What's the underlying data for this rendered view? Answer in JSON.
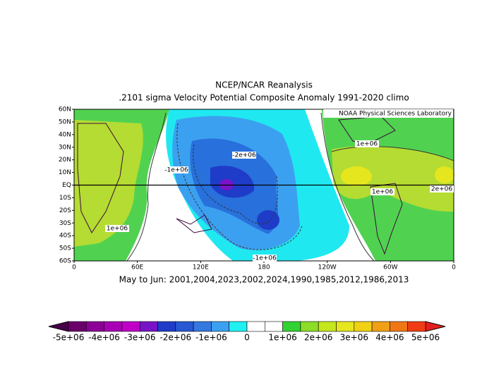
{
  "title": "NCEP/NCAR Reanalysis",
  "subtitle": ".2101 sigma Velocity Potential  Composite Anomaly 1991-2020 climo",
  "credit": "NOAA Physical Sciences Laboratory",
  "caption": "May to Jun: 2001,2004,2023,2002,2024,1990,1985,2012,1986,2013",
  "lat_labels": [
    "60N",
    "50N",
    "40N",
    "30N",
    "20N",
    "10N",
    "EQ",
    "10S",
    "20S",
    "30S",
    "40S",
    "50S",
    "60S"
  ],
  "lon_labels": [
    "0",
    "60E",
    "120E",
    "180",
    "120W",
    "60W",
    "0"
  ],
  "contour_labels": [
    "-2e+06",
    "-1e+06",
    "-1e+06",
    "1e+06",
    "1e+06",
    "2e+06",
    "1e+06"
  ],
  "colorbar": {
    "lim": [
      -5000000,
      5000000
    ],
    "ticks": [
      {
        "value": -5000000,
        "label": "-5e+06"
      },
      {
        "value": -4000000,
        "label": "-4e+06"
      },
      {
        "value": -3000000,
        "label": "-3e+06"
      },
      {
        "value": -2000000,
        "label": "-2e+06"
      },
      {
        "value": -1000000,
        "label": "-1e+06"
      },
      0,
      {
        "value": 1000000,
        "label": "1e+06"
      },
      {
        "value": 2000000,
        "label": "2e+06"
      },
      {
        "value": 3000000,
        "label": "3e+06"
      },
      {
        "value": 4000000,
        "label": "4e+06"
      },
      {
        "value": 5000000,
        "label": "5e+06"
      }
    ],
    "colors": [
      "#6a006a",
      "#8c0096",
      "#a800b4",
      "#c000c8",
      "#7814c8",
      "#1e3cc8",
      "#2858d2",
      "#3478e0",
      "#3ca0f0",
      "#20f0f0",
      "#ffffff",
      "#ffffff",
      "#32d232",
      "#8cdc28",
      "#c4e61e",
      "#e6e61e",
      "#f0d214",
      "#f0a014",
      "#f07814",
      "#f03c14"
    ],
    "under_color": "#4b004b",
    "over_color": "#e61e1e"
  }
}
